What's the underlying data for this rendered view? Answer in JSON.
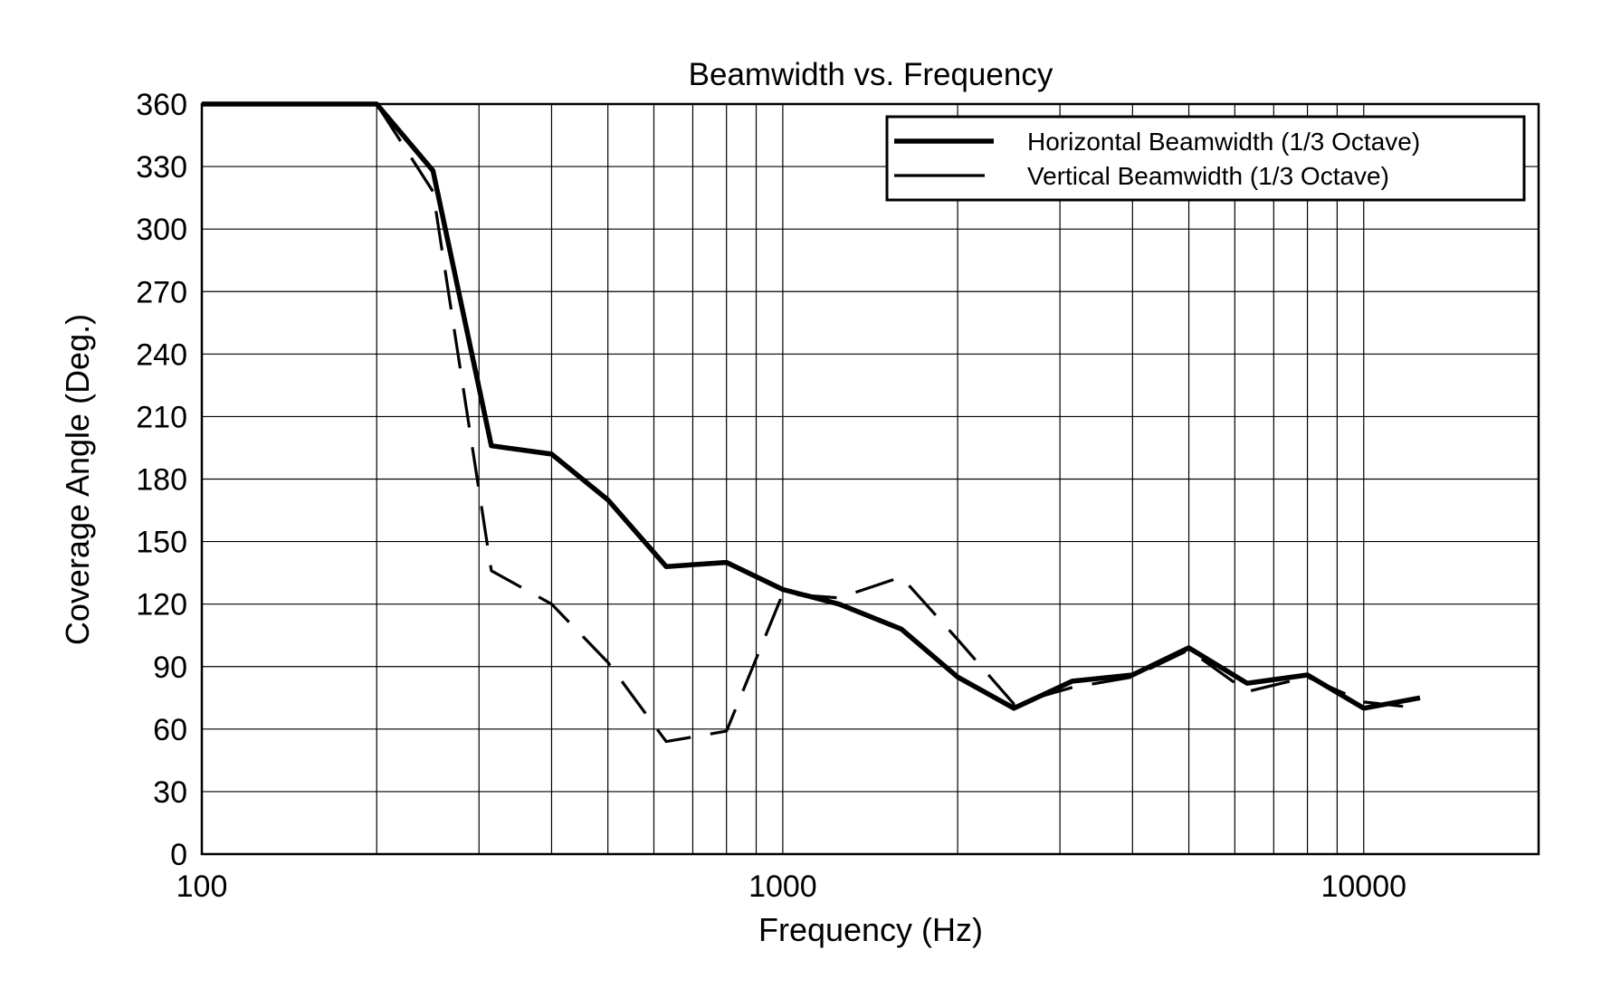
{
  "chart_data": {
    "type": "line",
    "title": "Beamwidth vs. Frequency",
    "xlabel": "Frequency (Hz)",
    "ylabel": "Coverage Angle (Deg.)",
    "xscale": "log",
    "xlim": [
      100,
      20000
    ],
    "ylim": [
      0,
      360
    ],
    "grid": true,
    "legend_position": "top-right",
    "x_ticks": [
      100,
      1000,
      10000
    ],
    "x_tick_labels": [
      "100",
      "1000",
      "10000"
    ],
    "y_ticks": [
      0,
      30,
      60,
      90,
      120,
      150,
      180,
      210,
      240,
      270,
      300,
      330,
      360
    ],
    "y_tick_labels": [
      "0",
      "30",
      "60",
      "90",
      "120",
      "150",
      "180",
      "210",
      "240",
      "270",
      "300",
      "330",
      "360"
    ],
    "x_minor_grid": [
      200,
      300,
      400,
      500,
      600,
      700,
      800,
      900,
      2000,
      3000,
      4000,
      5000,
      6000,
      7000,
      8000,
      9000
    ],
    "x": [
      100,
      125,
      160,
      200,
      250,
      315,
      400,
      500,
      630,
      800,
      1000,
      1250,
      1600,
      2000,
      2500,
      3150,
      4000,
      5000,
      6300,
      8000,
      10000,
      12500
    ],
    "series": [
      {
        "name": "Horizontal Beamwidth (1/3 Octave)",
        "style": "solid",
        "color": "#000000",
        "values": [
          360,
          360,
          360,
          360,
          328,
          196,
          192,
          170,
          138,
          140,
          127,
          120,
          108,
          85,
          70,
          83,
          86,
          99,
          82,
          86,
          70,
          75
        ]
      },
      {
        "name": "Vertical Beamwidth (1/3 Octave)",
        "style": "dashed",
        "color": "#000000",
        "values": [
          360,
          360,
          360,
          360,
          318,
          136,
          120,
          92,
          54,
          59,
          125,
          123,
          133,
          103,
          72,
          80,
          85,
          98,
          78,
          85,
          73,
          70
        ]
      }
    ]
  }
}
